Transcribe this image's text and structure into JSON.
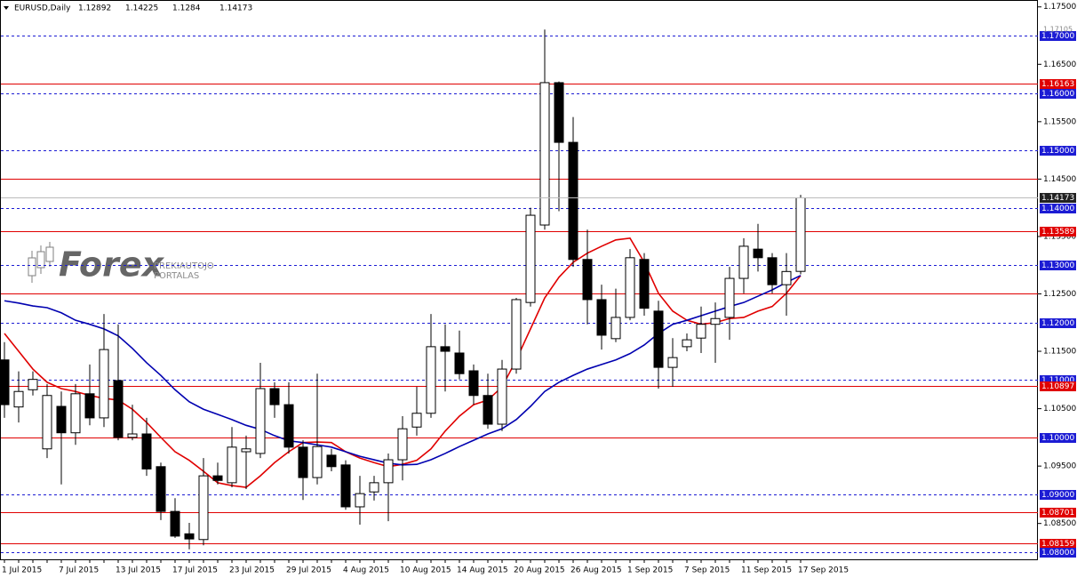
{
  "chart_data": {
    "type": "candlestick",
    "title": "EURUSD,Daily",
    "ylim": [
      1.0786,
      1.1762
    ],
    "yticks": [
      {
        "value": 1.175,
        "label": "1.17500"
      },
      {
        "value": 1.165,
        "label": "1.16500"
      },
      {
        "value": 1.155,
        "label": "1.15500"
      },
      {
        "value": 1.145,
        "label": "1.14500"
      },
      {
        "value": 1.135,
        "label": "1.13500"
      },
      {
        "value": 1.125,
        "label": "1.12500"
      },
      {
        "value": 1.115,
        "label": "1.11500"
      },
      {
        "value": 1.105,
        "label": "1.10500"
      },
      {
        "value": 1.095,
        "label": "1.09500"
      },
      {
        "value": 1.085,
        "label": "1.08500"
      }
    ],
    "categories": [
      "1 Jul 2015",
      null,
      null,
      null,
      "7 Jul 2015",
      null,
      null,
      null,
      "13 Jul 2015",
      null,
      null,
      null,
      "17 Jul 2015",
      null,
      null,
      null,
      "23 Jul 2015",
      null,
      null,
      null,
      "29 Jul 2015",
      null,
      null,
      null,
      "4 Aug 2015",
      null,
      null,
      null,
      "10 Aug 2015",
      null,
      null,
      null,
      "14 Aug 2015",
      null,
      null,
      null,
      "20 Aug 2015",
      null,
      null,
      null,
      "26 Aug 2015",
      null,
      null,
      null,
      "1 Sep 2015",
      null,
      null,
      null,
      "7 Sep 2015",
      null,
      null,
      null,
      "11 Sep 2015",
      null,
      null,
      null,
      "17 Sep 2015"
    ],
    "open": [
      1.1135,
      1.1053,
      1.1083,
      1.098,
      1.1054,
      1.1008,
      1.1076,
      1.1034,
      1.1099,
      1.1,
      1.1006,
      1.0949,
      1.0871,
      1.0832,
      1.0822,
      1.0933,
      1.0921,
      1.0975,
      1.0972,
      1.1085,
      1.1057,
      1.0983,
      1.093,
      1.0969,
      1.0952,
      1.0879,
      1.0905,
      1.0921,
      1.0961,
      1.1018,
      1.1042,
      1.1158,
      1.1147,
      1.1116,
      1.1073,
      1.1023,
      1.1119,
      1.1235,
      1.137,
      1.1618,
      1.1514,
      1.131,
      1.124,
      1.1172,
      1.1209,
      1.131,
      1.122,
      1.1122,
      1.1158,
      1.1173,
      1.1197,
      1.1209,
      1.1277,
      1.1328,
      1.1313,
      1.1266,
      1.12892
    ],
    "high": [
      1.1166,
      1.1115,
      1.1115,
      1.1093,
      1.108,
      1.1093,
      1.1127,
      1.1215,
      1.1197,
      1.1057,
      1.1034,
      1.0956,
      1.0894,
      1.0851,
      1.0964,
      1.0956,
      1.1018,
      1.1003,
      1.113,
      1.1096,
      1.1096,
      1.0995,
      1.1111,
      1.098,
      1.096,
      1.0933,
      1.0933,
      1.0972,
      1.1037,
      1.1088,
      1.1215,
      1.1197,
      1.1186,
      1.1127,
      1.1111,
      1.1135,
      1.1243,
      1.14,
      1.17105,
      1.162,
      1.1558,
      1.1362,
      1.1266,
      1.1259,
      1.1328,
      1.1321,
      1.1238,
      1.1173,
      1.1181,
      1.1228,
      1.1235,
      1.1297,
      1.1347,
      1.1372,
      1.1321,
      1.1321,
      1.14225
    ],
    "low": [
      1.1034,
      1.1026,
      1.1073,
      1.0964,
      1.0918,
      1.0987,
      1.1021,
      1.1018,
      1.0995,
      1.0995,
      1.0933,
      1.0856,
      1.0825,
      1.0805,
      1.0812,
      1.0918,
      1.0913,
      1.091,
      1.0964,
      1.1034,
      1.0972,
      1.0891,
      1.0918,
      1.0941,
      1.0874,
      1.0848,
      1.089,
      1.0854,
      1.0925,
      1.1003,
      1.1034,
      1.108,
      1.1101,
      1.1057,
      1.1015,
      1.1011,
      1.1111,
      1.1228,
      1.1362,
      1.1394,
      1.1297,
      1.1197,
      1.1153,
      1.1166,
      1.1204,
      1.1212,
      1.1085,
      1.1088,
      1.115,
      1.1147,
      1.113,
      1.117,
      1.1251,
      1.1289,
      1.1251,
      1.1212,
      1.1284
    ],
    "close": [
      1.1057,
      1.108,
      1.1101,
      1.1073,
      1.1008,
      1.1076,
      1.1034,
      1.1153,
      1.1,
      1.1006,
      1.0945,
      1.0871,
      1.0828,
      1.0823,
      1.0933,
      1.0925,
      1.0983,
      1.098,
      1.1085,
      1.1057,
      1.0983,
      1.093,
      1.0984,
      1.0949,
      1.0879,
      1.0902,
      1.0921,
      1.0961,
      1.1015,
      1.1042,
      1.1158,
      1.115,
      1.1111,
      1.1073,
      1.1023,
      1.1119,
      1.124,
      1.1387,
      1.1618,
      1.1514,
      1.131,
      1.124,
      1.1178,
      1.1209,
      1.1313,
      1.1225,
      1.1122,
      1.1139,
      1.117,
      1.1197,
      1.1207,
      1.1277,
      1.1333,
      1.1313,
      1.1266,
      1.1289,
      1.14173
    ],
    "series": [
      {
        "color": "#e00000",
        "values": [
          1.1181,
          1.115,
          1.1119,
          1.1096,
          1.1085,
          1.108,
          1.1073,
          1.1068,
          1.1065,
          1.1049,
          1.1026,
          1.1,
          1.0975,
          1.096,
          1.0941,
          1.0921,
          1.0916,
          1.0913,
          1.0933,
          1.0956,
          1.0975,
          1.0991,
          1.0992,
          1.0991,
          1.0975,
          1.0964,
          1.0956,
          1.0949,
          1.0953,
          1.096,
          1.098,
          1.1011,
          1.1037,
          1.1057,
          1.1065,
          1.1088,
          1.1135,
          1.1189,
          1.1243,
          1.1279,
          1.1305,
          1.1321,
          1.1333,
          1.1344,
          1.1347,
          1.1305,
          1.1251,
          1.122,
          1.1204,
          1.1197,
          1.12,
          1.1207,
          1.1209,
          1.122,
          1.1228,
          1.1251,
          1.1282
        ]
      },
      {
        "color": "#0000b0",
        "values": [
          1.1238,
          1.1234,
          1.1229,
          1.1226,
          1.1217,
          1.1204,
          1.1197,
          1.1189,
          1.1177,
          1.1155,
          1.113,
          1.1108,
          1.1083,
          1.1062,
          1.1049,
          1.104,
          1.1031,
          1.1021,
          1.1014,
          1.1003,
          1.0994,
          1.0991,
          1.0987,
          1.0983,
          1.0975,
          1.0967,
          1.0961,
          1.0955,
          1.0952,
          1.0953,
          1.0961,
          1.0972,
          1.0984,
          1.0995,
          1.1006,
          1.1015,
          1.1031,
          1.1054,
          1.108,
          1.1096,
          1.1108,
          1.1119,
          1.1127,
          1.1135,
          1.1146,
          1.1161,
          1.1181,
          1.1197,
          1.1204,
          1.1212,
          1.122,
          1.1228,
          1.1235,
          1.1246,
          1.1257,
          1.127,
          1.1282
        ]
      }
    ],
    "levels": [
      {
        "value": 1.17,
        "label": "1.17000",
        "color": "#1c1cd4",
        "dashed": true
      },
      {
        "value": 1.16163,
        "label": "1.16163",
        "color": "#e00000",
        "dashed": false
      },
      {
        "value": 1.16,
        "label": "1.16000",
        "color": "#1c1cd4",
        "dashed": true
      },
      {
        "value": 1.15,
        "label": "1.15000",
        "color": "#1c1cd4",
        "dashed": true
      },
      {
        "value": 1.145,
        "color": "#e00000",
        "dashed": false
      },
      {
        "value": 1.14,
        "label": "1.14000",
        "color": "#1c1cd4",
        "dashed": true
      },
      {
        "value": 1.13589,
        "label": "1.13589",
        "color": "#e00000",
        "dashed": false
      },
      {
        "value": 1.13,
        "label": "1.13000",
        "color": "#1c1cd4",
        "dashed": true
      },
      {
        "value": 1.125,
        "color": "#e00000",
        "dashed": false
      },
      {
        "value": 1.12,
        "label": "1.12000",
        "color": "#1c1cd4",
        "dashed": true
      },
      {
        "value": 1.11,
        "label": "1.11000",
        "color": "#1c1cd4",
        "dashed": true
      },
      {
        "value": 1.10897,
        "label": "1.10897",
        "color": "#e00000",
        "dashed": false
      },
      {
        "value": 1.1,
        "label": "1.10000",
        "color": "#1c1cd4",
        "dashed": true
      },
      {
        "value": 1.1,
        "color": "#e00000",
        "dashed": false
      },
      {
        "value": 1.09,
        "label": "1.09000",
        "color": "#1c1cd4",
        "dashed": true
      },
      {
        "value": 1.08701,
        "label": "1.08701",
        "color": "#e00000",
        "dashed": false
      },
      {
        "value": 1.08159,
        "label": "1.08159",
        "color": "#e00000",
        "dashed": false
      },
      {
        "value": 1.08,
        "label": "1.08000",
        "color": "#1c1cd4",
        "dashed": true
      }
    ]
  },
  "watermark": {
    "brand": "Forex",
    "tagline": [
      "PREKIAUTOJO",
      "PORTALAS"
    ]
  }
}
